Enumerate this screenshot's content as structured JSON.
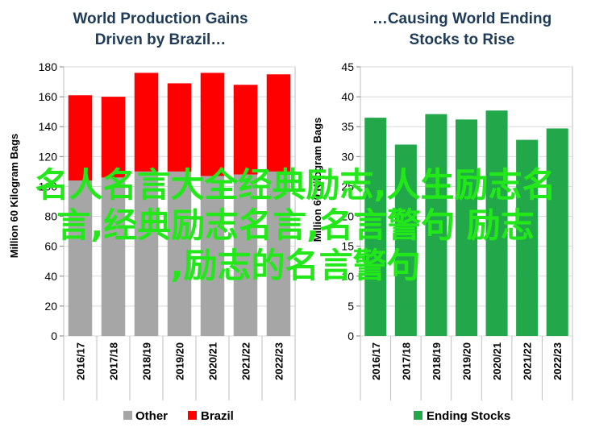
{
  "colors": {
    "other": "#a6a6a6",
    "brazil": "#ff0000",
    "ending": "#22a84a",
    "overlay": "#22e81a",
    "title": "#1f3b57",
    "grid": "#d9d9d9"
  },
  "overlay_text": {
    "line1": "名人名言大全经典励志,人生励志名",
    "line2": "言,经典励志名言,名言警句 励志",
    "line3": ",励志的名言警句"
  },
  "chart_data": [
    {
      "type": "bar",
      "stacked": true,
      "title_line1": "World Production Gains",
      "title_line2": "Driven by Brazil…",
      "ylabel": "Million 60 Kilogram Bags",
      "categories": [
        "2016/17",
        "2017/18",
        "2018/19",
        "2019/20",
        "2020/21",
        "2021/22",
        "2022/23"
      ],
      "ylim": [
        0,
        180
      ],
      "yticks": [
        "0",
        "20",
        "40",
        "60",
        "80",
        "100",
        "120",
        "140",
        "160",
        "180"
      ],
      "grid": true,
      "legend_position": "bottom",
      "series": [
        {
          "name": "Other",
          "values": [
            104,
            106,
            110,
            110,
            107,
            108,
            110
          ]
        },
        {
          "name": "Brazil",
          "values": [
            57,
            54,
            66,
            59,
            69,
            60,
            65
          ]
        }
      ]
    },
    {
      "type": "bar",
      "title_line1": "…Causing World Ending",
      "title_line2": "Stocks to Rise",
      "ylabel": "Million 60 Kilogram Bags",
      "categories": [
        "2016/17",
        "2017/18",
        "2018/19",
        "2019/20",
        "2020/21",
        "2021/22",
        "2022/23"
      ],
      "ylim": [
        0,
        45
      ],
      "yticks": [
        "0",
        "5",
        "10",
        "15",
        "20",
        "25",
        "30",
        "35",
        "40",
        "45"
      ],
      "grid": true,
      "legend_position": "bottom",
      "series": [
        {
          "name": "Ending Stocks",
          "values": [
            36.5,
            32.0,
            37.1,
            36.2,
            37.7,
            32.8,
            34.7
          ]
        }
      ]
    }
  ]
}
